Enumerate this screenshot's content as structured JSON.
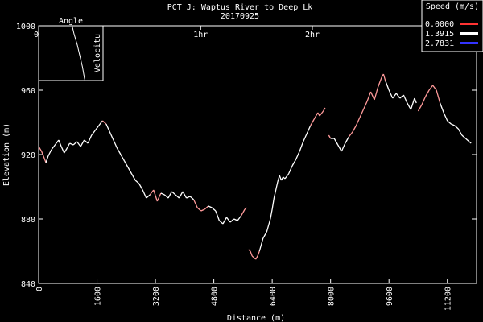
{
  "chart_data": {
    "type": "line",
    "title": "PCT J:  Waptus River to Deep Lk",
    "subtitle": "20170925",
    "xlabel": "Distance (m)",
    "ylabel": "Elevation (m)",
    "xlim": [
      0,
      12000
    ],
    "ylim": [
      840,
      1000
    ],
    "x_ticks": [
      "0",
      "1600",
      "3200",
      "4800",
      "6400",
      "8000",
      "9600",
      "11200"
    ],
    "y_ticks": [
      "840",
      "880",
      "920",
      "960",
      "1000"
    ],
    "time_ticks": [
      {
        "label": "0h",
        "x": 0
      },
      {
        "label": "1hr",
        "x": 4440
      },
      {
        "label": "2hr",
        "x": 7500
      }
    ],
    "legend": {
      "title": "Speed (m/s)",
      "position": "top-right",
      "entries": [
        {
          "label": "0.0000",
          "color": "#ff3333"
        },
        {
          "label": "1.3915",
          "color": "#ffffff"
        },
        {
          "label": "2.7831",
          "color": "#3333ff"
        }
      ]
    },
    "inset": {
      "title": "Angle",
      "ylabel": "Velocitu",
      "line": [
        [
          0.52,
          1.0
        ],
        [
          0.55,
          0.85
        ],
        [
          0.6,
          0.65
        ],
        [
          0.64,
          0.45
        ],
        [
          0.68,
          0.25
        ],
        [
          0.71,
          0.05
        ],
        [
          0.72,
          0.0
        ]
      ]
    },
    "grid": false,
    "color_low": "#ff9a9a",
    "color_high": "#ffffff",
    "series": [
      {
        "points": [
          [
            0,
            925,
            0
          ],
          [
            80,
            922,
            0
          ],
          [
            150,
            918,
            0
          ],
          [
            200,
            915,
            0
          ],
          [
            260,
            919,
            1
          ],
          [
            350,
            923,
            1
          ],
          [
            450,
            926,
            1
          ],
          [
            550,
            929,
            1
          ],
          [
            620,
            925,
            1
          ],
          [
            700,
            921,
            1
          ],
          [
            780,
            924,
            1
          ],
          [
            850,
            927,
            1
          ],
          [
            950,
            926,
            1
          ],
          [
            1050,
            928,
            1
          ],
          [
            1150,
            925,
            1
          ],
          [
            1250,
            929,
            1
          ],
          [
            1350,
            927,
            1
          ],
          [
            1450,
            932,
            1
          ],
          [
            1550,
            935,
            1
          ],
          [
            1650,
            938,
            1
          ],
          [
            1750,
            941,
            1
          ],
          [
            1850,
            939,
            0
          ],
          [
            1950,
            934,
            1
          ],
          [
            2050,
            929,
            1
          ],
          [
            2150,
            924,
            1
          ],
          [
            2250,
            920,
            1
          ],
          [
            2350,
            916,
            1
          ],
          [
            2450,
            912,
            1
          ],
          [
            2550,
            908,
            1
          ],
          [
            2650,
            904,
            1
          ],
          [
            2750,
            902,
            1
          ],
          [
            2850,
            898,
            1
          ],
          [
            2950,
            893,
            1
          ],
          [
            3050,
            895,
            1
          ],
          [
            3150,
            898,
            0
          ],
          [
            3250,
            891,
            0
          ],
          [
            3350,
            896,
            0
          ],
          [
            3450,
            895,
            1
          ],
          [
            3550,
            893,
            1
          ],
          [
            3650,
            897,
            1
          ],
          [
            3750,
            895,
            1
          ],
          [
            3850,
            893,
            1
          ],
          [
            3950,
            897,
            1
          ],
          [
            4050,
            893,
            1
          ],
          [
            4150,
            894,
            1
          ],
          [
            4250,
            892,
            1
          ],
          [
            4350,
            887,
            0
          ],
          [
            4450,
            885,
            0
          ],
          [
            4550,
            886,
            0
          ],
          [
            4650,
            888,
            0
          ],
          [
            4750,
            887,
            1
          ],
          [
            4850,
            885,
            1
          ],
          [
            4950,
            879,
            1
          ],
          [
            5050,
            877,
            1
          ],
          [
            5150,
            881,
            1
          ],
          [
            5250,
            878,
            1
          ],
          [
            5350,
            880,
            1
          ],
          [
            5450,
            879,
            1
          ],
          [
            5550,
            882,
            1
          ],
          [
            5600,
            884,
            0
          ],
          [
            5650,
            886,
            0
          ],
          [
            5700,
            887,
            0
          ]
        ]
      },
      {
        "points": [
          [
            5750,
            861,
            0
          ],
          [
            5800,
            860,
            0
          ],
          [
            5850,
            857,
            0
          ],
          [
            5900,
            856,
            0
          ],
          [
            5950,
            855,
            0
          ],
          [
            6000,
            857,
            0
          ],
          [
            6050,
            860,
            0
          ],
          [
            6100,
            864,
            1
          ],
          [
            6150,
            868,
            1
          ],
          [
            6250,
            872,
            1
          ],
          [
            6350,
            880,
            1
          ],
          [
            6400,
            886,
            1
          ],
          [
            6450,
            893,
            1
          ],
          [
            6500,
            898,
            1
          ],
          [
            6550,
            903,
            1
          ],
          [
            6600,
            907,
            1
          ],
          [
            6650,
            904,
            1
          ],
          [
            6700,
            906,
            1
          ],
          [
            6750,
            905,
            1
          ],
          [
            6850,
            908,
            1
          ],
          [
            6950,
            913,
            1
          ],
          [
            7050,
            917,
            1
          ],
          [
            7150,
            922,
            1
          ],
          [
            7250,
            928,
            1
          ],
          [
            7350,
            933,
            1
          ],
          [
            7450,
            938,
            1
          ],
          [
            7550,
            942,
            0
          ],
          [
            7650,
            946,
            0
          ],
          [
            7700,
            944,
            0
          ],
          [
            7800,
            947,
            0
          ],
          [
            7850,
            949,
            0
          ]
        ]
      },
      {
        "points": [
          [
            7950,
            932,
            0
          ],
          [
            8000,
            930,
            0
          ],
          [
            8100,
            930,
            1
          ],
          [
            8200,
            926,
            1
          ],
          [
            8300,
            922,
            1
          ],
          [
            8400,
            927,
            1
          ],
          [
            8500,
            931,
            1
          ],
          [
            8600,
            934,
            0
          ],
          [
            8700,
            938,
            0
          ],
          [
            8800,
            943,
            0
          ],
          [
            8900,
            948,
            0
          ],
          [
            9000,
            953,
            0
          ],
          [
            9100,
            959,
            0
          ],
          [
            9200,
            954,
            0
          ],
          [
            9300,
            962,
            0
          ],
          [
            9400,
            968,
            0
          ],
          [
            9450,
            970,
            0
          ],
          [
            9500,
            966,
            0
          ],
          [
            9600,
            960,
            1
          ],
          [
            9700,
            955,
            1
          ],
          [
            9800,
            958,
            1
          ],
          [
            9900,
            955,
            1
          ],
          [
            10000,
            957,
            1
          ],
          [
            10100,
            952,
            1
          ],
          [
            10200,
            948,
            1
          ],
          [
            10300,
            955,
            1
          ],
          [
            10350,
            952,
            1
          ]
        ]
      },
      {
        "points": [
          [
            10400,
            947,
            0
          ],
          [
            10500,
            951,
            0
          ],
          [
            10600,
            956,
            0
          ],
          [
            10700,
            960,
            0
          ],
          [
            10800,
            963,
            0
          ],
          [
            10900,
            960,
            0
          ],
          [
            11000,
            952,
            0
          ],
          [
            11100,
            946,
            1
          ],
          [
            11200,
            941,
            1
          ],
          [
            11300,
            939,
            1
          ],
          [
            11400,
            938,
            1
          ],
          [
            11500,
            936,
            1
          ],
          [
            11600,
            932,
            1
          ],
          [
            11700,
            930,
            1
          ],
          [
            11800,
            928,
            1
          ],
          [
            11850,
            927,
            1
          ]
        ]
      }
    ]
  }
}
